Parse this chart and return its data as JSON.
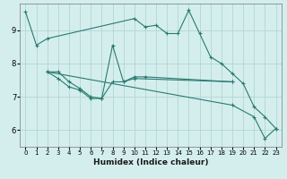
{
  "title": "",
  "xlabel": "Humidex (Indice chaleur)",
  "ylabel": "",
  "bg_color": "#d4eeee",
  "line_color": "#2a7a70",
  "grid_color": "#b8d8d8",
  "xlim": [
    -0.5,
    23.5
  ],
  "ylim": [
    5.5,
    9.8
  ],
  "xticks": [
    0,
    1,
    2,
    3,
    4,
    5,
    6,
    7,
    8,
    9,
    10,
    11,
    12,
    13,
    14,
    15,
    16,
    17,
    18,
    19,
    20,
    21,
    22,
    23
  ],
  "yticks": [
    6,
    7,
    8,
    9
  ],
  "series": [
    {
      "x": [
        0,
        1,
        2,
        10,
        11,
        12,
        13,
        14,
        15,
        16,
        17,
        18,
        19,
        20,
        21,
        22,
        23
      ],
      "y": [
        9.55,
        8.55,
        8.75,
        9.35,
        9.1,
        9.15,
        8.9,
        8.9,
        9.6,
        8.9,
        8.2,
        8.0,
        7.7,
        7.4,
        6.7,
        6.4,
        6.05
      ]
    },
    {
      "x": [
        2,
        3,
        4,
        5,
        6,
        7,
        8,
        9,
        10,
        11,
        19
      ],
      "y": [
        7.75,
        7.75,
        7.45,
        7.25,
        7.0,
        6.95,
        8.55,
        7.45,
        7.6,
        7.6,
        7.45
      ]
    },
    {
      "x": [
        2,
        3,
        4,
        5,
        6,
        7,
        8,
        9,
        10,
        19
      ],
      "y": [
        7.75,
        7.55,
        7.3,
        7.2,
        6.95,
        6.95,
        7.45,
        7.45,
        7.55,
        7.45
      ]
    },
    {
      "x": [
        2,
        19,
        21,
        22,
        23
      ],
      "y": [
        7.75,
        6.75,
        6.4,
        5.75,
        6.05
      ]
    }
  ]
}
